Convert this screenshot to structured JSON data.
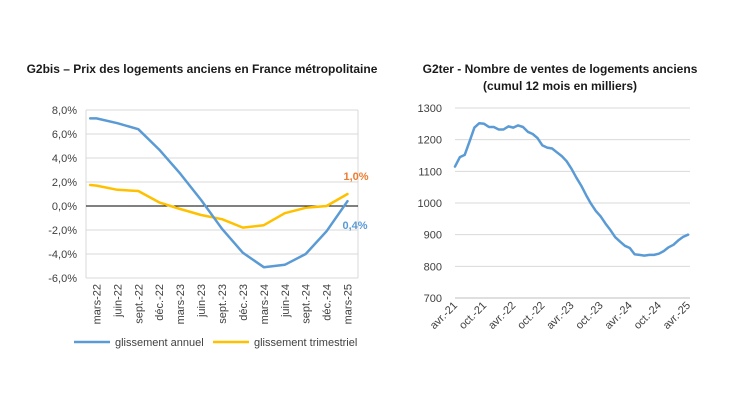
{
  "charts": {
    "left": {
      "title": "G2bis – Prix des logements anciens en France métropolitaine"
    },
    "right": {
      "title_line1": "G2ter - Nombre de ventes de logements anciens",
      "title_line2": "(cumul 12 mois en milliers)"
    }
  },
  "chart_data": [
    {
      "type": "line",
      "title": "G2bis – Prix des logements anciens en France métropolitaine",
      "categories": [
        "mars-22",
        "juin-22",
        "sept.-22",
        "déc.-22",
        "mars-23",
        "juin-23",
        "sept.-23",
        "déc.-23",
        "mars-24",
        "juin-24",
        "sept.-24",
        "déc.-24",
        "mars-25"
      ],
      "x": [
        0,
        1,
        2,
        3,
        4,
        5,
        6,
        7,
        8,
        9,
        10,
        11,
        12
      ],
      "y_ticks": [
        "-6,0%",
        "-4,0%",
        "-2,0%",
        "0,0%",
        "2,0%",
        "4,0%",
        "6,0%",
        "8,0%"
      ],
      "ylim": [
        -6,
        8
      ],
      "grid": true,
      "legend_position": "bottom",
      "series": [
        {
          "name": "glissement annuel",
          "color": "#5B9BD5",
          "x": [
            -0.3,
            0,
            1,
            2,
            3,
            4,
            5,
            6,
            7,
            8,
            9,
            10,
            11,
            12
          ],
          "values": [
            7.3,
            7.3,
            6.9,
            6.4,
            4.7,
            2.7,
            0.5,
            -1.9,
            -3.9,
            -5.1,
            -4.9,
            -4.0,
            -2.1,
            0.4
          ],
          "end_label": "0,4%"
        },
        {
          "name": "glissement trimestriel",
          "color": "#FFC000",
          "x": [
            -0.3,
            0,
            1,
            2,
            3,
            4,
            5,
            6,
            7,
            8,
            9,
            10,
            11,
            12
          ],
          "values": [
            1.75,
            1.7,
            1.35,
            1.25,
            0.3,
            -0.25,
            -0.75,
            -1.1,
            -1.8,
            -1.6,
            -0.6,
            -0.15,
            0.0,
            1.0
          ],
          "end_label": "1,0%",
          "end_label_color": "#ED7D31"
        }
      ]
    },
    {
      "type": "line",
      "title": "G2ter - Nombre de ventes de logements anciens (cumul 12 mois en milliers)",
      "categories": [
        "avr.-21",
        "oct.-21",
        "avr.-22",
        "oct.-22",
        "avr.-23",
        "oct.-23",
        "avr.-24",
        "oct.-24",
        "avr.-25"
      ],
      "y_ticks": [
        "700",
        "800",
        "900",
        "1000",
        "1100",
        "1200",
        "1300"
      ],
      "ylim": [
        700,
        1300
      ],
      "grid": true,
      "series": [
        {
          "color": "#5B9BD5",
          "x": [
            0,
            1,
            2,
            3,
            4,
            5,
            6,
            7,
            8,
            9,
            10,
            11,
            12,
            13,
            14,
            15,
            16,
            17,
            18,
            19,
            20,
            21,
            22,
            23,
            24,
            25,
            26,
            27,
            28,
            29,
            30,
            31,
            32,
            33,
            34,
            35,
            36,
            37,
            38,
            39,
            40,
            41,
            42,
            43,
            44,
            45,
            46,
            47,
            48
          ],
          "values": [
            1115,
            1145,
            1152,
            1195,
            1238,
            1252,
            1250,
            1240,
            1240,
            1232,
            1232,
            1242,
            1238,
            1245,
            1240,
            1225,
            1218,
            1205,
            1182,
            1175,
            1172,
            1160,
            1148,
            1132,
            1108,
            1080,
            1055,
            1025,
            998,
            975,
            958,
            935,
            915,
            892,
            878,
            865,
            858,
            838,
            836,
            834,
            836,
            836,
            840,
            848,
            860,
            868,
            882,
            893,
            900
          ]
        }
      ]
    }
  ]
}
